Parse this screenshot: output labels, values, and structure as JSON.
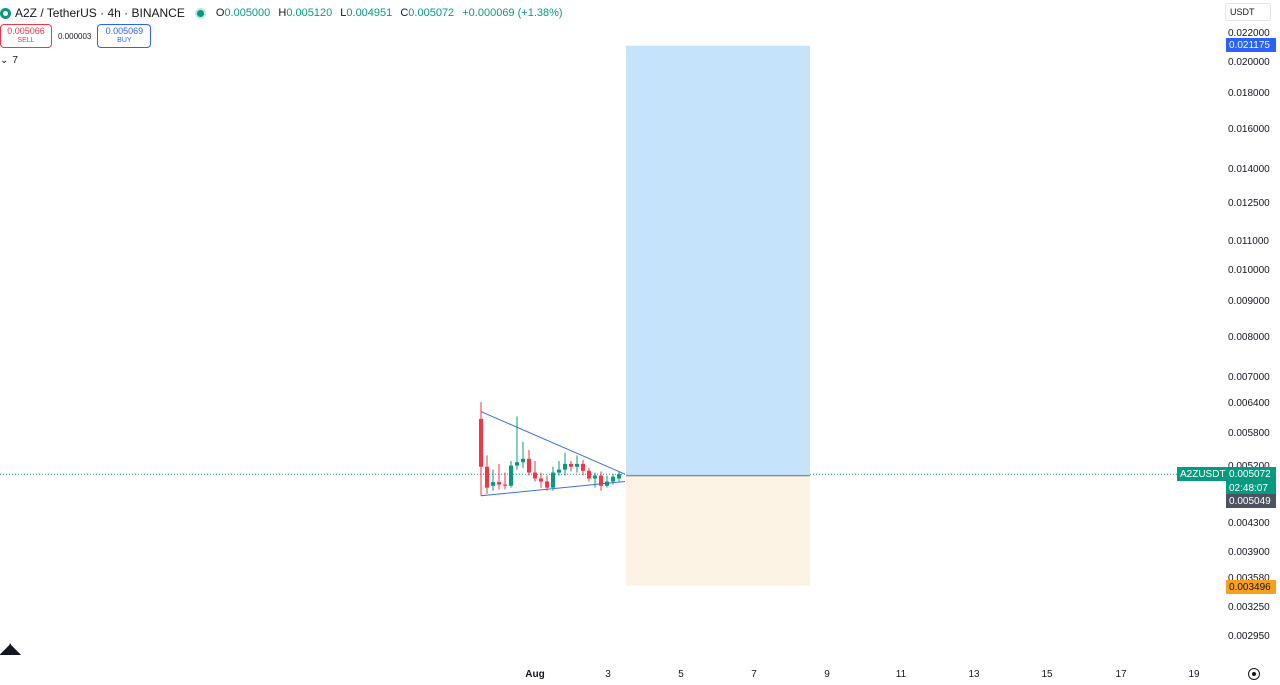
{
  "header": {
    "symbol": "A2Z",
    "quote": "TetherUS",
    "interval": "4h",
    "exchange": "BINANCE",
    "title": "A2Z / TetherUS · 4h · BINANCE",
    "ohlc": {
      "o_label": "O",
      "o": "0.005000",
      "h_label": "H",
      "h": "0.005120",
      "l_label": "L",
      "l": "0.004951",
      "c_label": "C",
      "c": "0.005072",
      "change": "+0.000069 (+1.38%)"
    }
  },
  "trade": {
    "sell_price": "0.005066",
    "sell_label": "SELL",
    "spread": "0.000003",
    "buy_price": "0.005069",
    "buy_label": "BUY"
  },
  "indicators_count": "7",
  "currency": "USDT",
  "price_axis": {
    "ticks": [
      "0.022000",
      "0.020000",
      "0.018000",
      "0.016000",
      "0.014000",
      "0.012500",
      "0.011000",
      "0.010000",
      "0.009000",
      "0.008000",
      "0.007000",
      "0.006400",
      "0.005800",
      "0.005200",
      "0.004300",
      "0.003900",
      "0.003580",
      "0.003250",
      "0.002950"
    ],
    "labels": {
      "target": "0.021175",
      "last": "0.005072",
      "countdown": "02:48:07",
      "entry": "0.005049",
      "stop": "0.003496",
      "symbol_tag": "A2ZUSDT"
    }
  },
  "time_axis": {
    "labels": [
      "Aug",
      "3",
      "5",
      "7",
      "9",
      "11",
      "13",
      "15",
      "17",
      "19"
    ]
  },
  "colors": {
    "up": "#089981",
    "down": "#f23645",
    "target": "#2962ff",
    "stop": "#f7a01c",
    "profit_zone": "#c5e3fa",
    "loss_zone": "#fdf3e4",
    "trendline": "#3d6ee5"
  },
  "chart_data": {
    "type": "candlestick",
    "scale": "log",
    "ylim": [
      0.0028,
      0.0225
    ],
    "candles": [
      {
        "o": 0.0061,
        "h": 0.00645,
        "l": 0.00472,
        "c": 0.0052
      },
      {
        "o": 0.0052,
        "h": 0.0054,
        "l": 0.00475,
        "c": 0.00485
      },
      {
        "o": 0.00488,
        "h": 0.00515,
        "l": 0.0048,
        "c": 0.00494
      },
      {
        "o": 0.00494,
        "h": 0.00525,
        "l": 0.00482,
        "c": 0.0049
      },
      {
        "o": 0.0049,
        "h": 0.0051,
        "l": 0.00482,
        "c": 0.00488
      },
      {
        "o": 0.00488,
        "h": 0.0053,
        "l": 0.00485,
        "c": 0.00522
      },
      {
        "o": 0.00522,
        "h": 0.00615,
        "l": 0.00515,
        "c": 0.00528
      },
      {
        "o": 0.00528,
        "h": 0.00565,
        "l": 0.00518,
        "c": 0.00534
      },
      {
        "o": 0.00534,
        "h": 0.0055,
        "l": 0.00505,
        "c": 0.0051
      },
      {
        "o": 0.0051,
        "h": 0.0053,
        "l": 0.00495,
        "c": 0.005
      },
      {
        "o": 0.005,
        "h": 0.0051,
        "l": 0.00485,
        "c": 0.00495
      },
      {
        "o": 0.00495,
        "h": 0.00505,
        "l": 0.0048,
        "c": 0.00485
      },
      {
        "o": 0.00485,
        "h": 0.0052,
        "l": 0.0048,
        "c": 0.0051
      },
      {
        "o": 0.0051,
        "h": 0.0053,
        "l": 0.00505,
        "c": 0.00515
      },
      {
        "o": 0.00515,
        "h": 0.00545,
        "l": 0.00505,
        "c": 0.00525
      },
      {
        "o": 0.00525,
        "h": 0.0053,
        "l": 0.00512,
        "c": 0.0052
      },
      {
        "o": 0.0052,
        "h": 0.0054,
        "l": 0.0051,
        "c": 0.00525
      },
      {
        "o": 0.00525,
        "h": 0.00532,
        "l": 0.00505,
        "c": 0.00513
      },
      {
        "o": 0.00513,
        "h": 0.00518,
        "l": 0.00495,
        "c": 0.005
      },
      {
        "o": 0.005,
        "h": 0.0051,
        "l": 0.00485,
        "c": 0.00505
      },
      {
        "o": 0.00505,
        "h": 0.00512,
        "l": 0.0048,
        "c": 0.00488
      },
      {
        "o": 0.00488,
        "h": 0.00505,
        "l": 0.00485,
        "c": 0.00495
      },
      {
        "o": 0.00495,
        "h": 0.00508,
        "l": 0.0049,
        "c": 0.00503
      },
      {
        "o": 0.005,
        "h": 0.00512,
        "l": 0.004951,
        "c": 0.005072
      }
    ],
    "position": {
      "entry": 0.005049,
      "target": 0.021175,
      "stop": 0.003496
    },
    "trendlines": [
      {
        "from_candle": 0,
        "from_price": 0.00625,
        "to_candle": 23,
        "to_price": 0.005072
      },
      {
        "from_candle": 0,
        "from_price": 0.00472,
        "to_candle": 23,
        "to_price": 0.004951
      }
    ],
    "last_price": 0.005072
  }
}
